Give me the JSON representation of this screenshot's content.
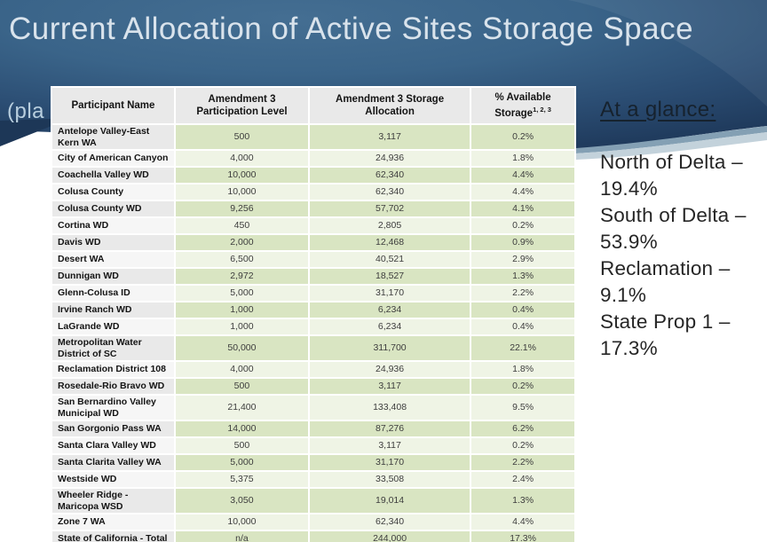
{
  "slide": {
    "title": "Current Allocation of Active Sites Storage Space",
    "subtitle_fragment": "(pla",
    "colors": {
      "bg_navy_dark": "#1f3a5c",
      "bg_blue_mid": "#3a6489",
      "bg_blue_light": "#446e92",
      "swoosh_band_dark": "#84a0b4",
      "swoosh_band_light": "#c3d2db",
      "row_green": "#d9e5c2",
      "row_pale_green": "#eff4e5",
      "row_gray": "#e9e9e9",
      "row_light": "#f6f6f6",
      "header_gray": "#e9e9e9",
      "title_text": "#d9e3ec",
      "subtitle_text": "#b9cfdf",
      "body_text": "#262626"
    }
  },
  "table": {
    "columns": [
      {
        "text": "Participant Name",
        "sup": ""
      },
      {
        "text": "Amendment 3 Participation Level",
        "sup": ""
      },
      {
        "text": "Amendment 3 Storage Allocation",
        "sup": ""
      },
      {
        "text": "% Available Storage",
        "sup": "1, 2, 3"
      }
    ],
    "rows": [
      {
        "name": "Antelope Valley-East Kern WA",
        "participation": "500",
        "allocation": "3,117",
        "available": "0.2%"
      },
      {
        "name": "City of American Canyon",
        "participation": "4,000",
        "allocation": "24,936",
        "available": "1.8%"
      },
      {
        "name": "Coachella Valley WD",
        "participation": "10,000",
        "allocation": "62,340",
        "available": "4.4%"
      },
      {
        "name": "Colusa County",
        "participation": "10,000",
        "allocation": "62,340",
        "available": "4.4%"
      },
      {
        "name": "Colusa County WD",
        "participation": "9,256",
        "allocation": "57,702",
        "available": "4.1%"
      },
      {
        "name": "Cortina WD",
        "participation": "450",
        "allocation": "2,805",
        "available": "0.2%"
      },
      {
        "name": "Davis WD",
        "participation": "2,000",
        "allocation": "12,468",
        "available": "0.9%"
      },
      {
        "name": "Desert WA",
        "participation": "6,500",
        "allocation": "40,521",
        "available": "2.9%"
      },
      {
        "name": "Dunnigan WD",
        "participation": "2,972",
        "allocation": "18,527",
        "available": "1.3%"
      },
      {
        "name": "Glenn-Colusa ID",
        "participation": "5,000",
        "allocation": "31,170",
        "available": "2.2%"
      },
      {
        "name": "Irvine Ranch WD",
        "participation": "1,000",
        "allocation": "6,234",
        "available": "0.4%"
      },
      {
        "name": "LaGrande WD",
        "participation": "1,000",
        "allocation": "6,234",
        "available": "0.4%"
      },
      {
        "name": "Metropolitan Water District of SC",
        "participation": "50,000",
        "allocation": "311,700",
        "available": "22.1%"
      },
      {
        "name": "Reclamation District 108",
        "participation": "4,000",
        "allocation": "24,936",
        "available": "1.8%"
      },
      {
        "name": "Rosedale-Rio Bravo WD",
        "participation": "500",
        "allocation": "3,117",
        "available": "0.2%"
      },
      {
        "name": "San Bernardino Valley Municipal WD",
        "participation": "21,400",
        "allocation": "133,408",
        "available": "9.5%"
      },
      {
        "name": "San Gorgonio Pass WA",
        "participation": "14,000",
        "allocation": "87,276",
        "available": "6.2%"
      },
      {
        "name": "Santa Clara Valley WD",
        "participation": "500",
        "allocation": "3,117",
        "available": "0.2%"
      },
      {
        "name": "Santa Clarita Valley WA",
        "participation": "5,000",
        "allocation": "31,170",
        "available": "2.2%"
      },
      {
        "name": "Westside WD",
        "participation": "5,375",
        "allocation": "33,508",
        "available": "2.4%"
      },
      {
        "name": "Wheeler Ridge - Maricopa WSD",
        "participation": "3,050",
        "allocation": "19,014",
        "available": "1.3%"
      },
      {
        "name": "Zone 7 WA",
        "participation": "10,000",
        "allocation": "62,340",
        "available": "4.4%"
      },
      {
        "name": "State of California - Total",
        "participation": "n/a",
        "allocation": "244,000",
        "available": "17.3%"
      }
    ]
  },
  "glance": {
    "title": "At a glance:",
    "stats": [
      {
        "label": "North of Delta –",
        "value": "19.4%"
      },
      {
        "label": "South of Delta –",
        "value": "53.9%"
      },
      {
        "label": "Reclamation –",
        "value": "9.1%"
      },
      {
        "label": "State Prop 1 –",
        "value": "17.3%"
      }
    ]
  }
}
